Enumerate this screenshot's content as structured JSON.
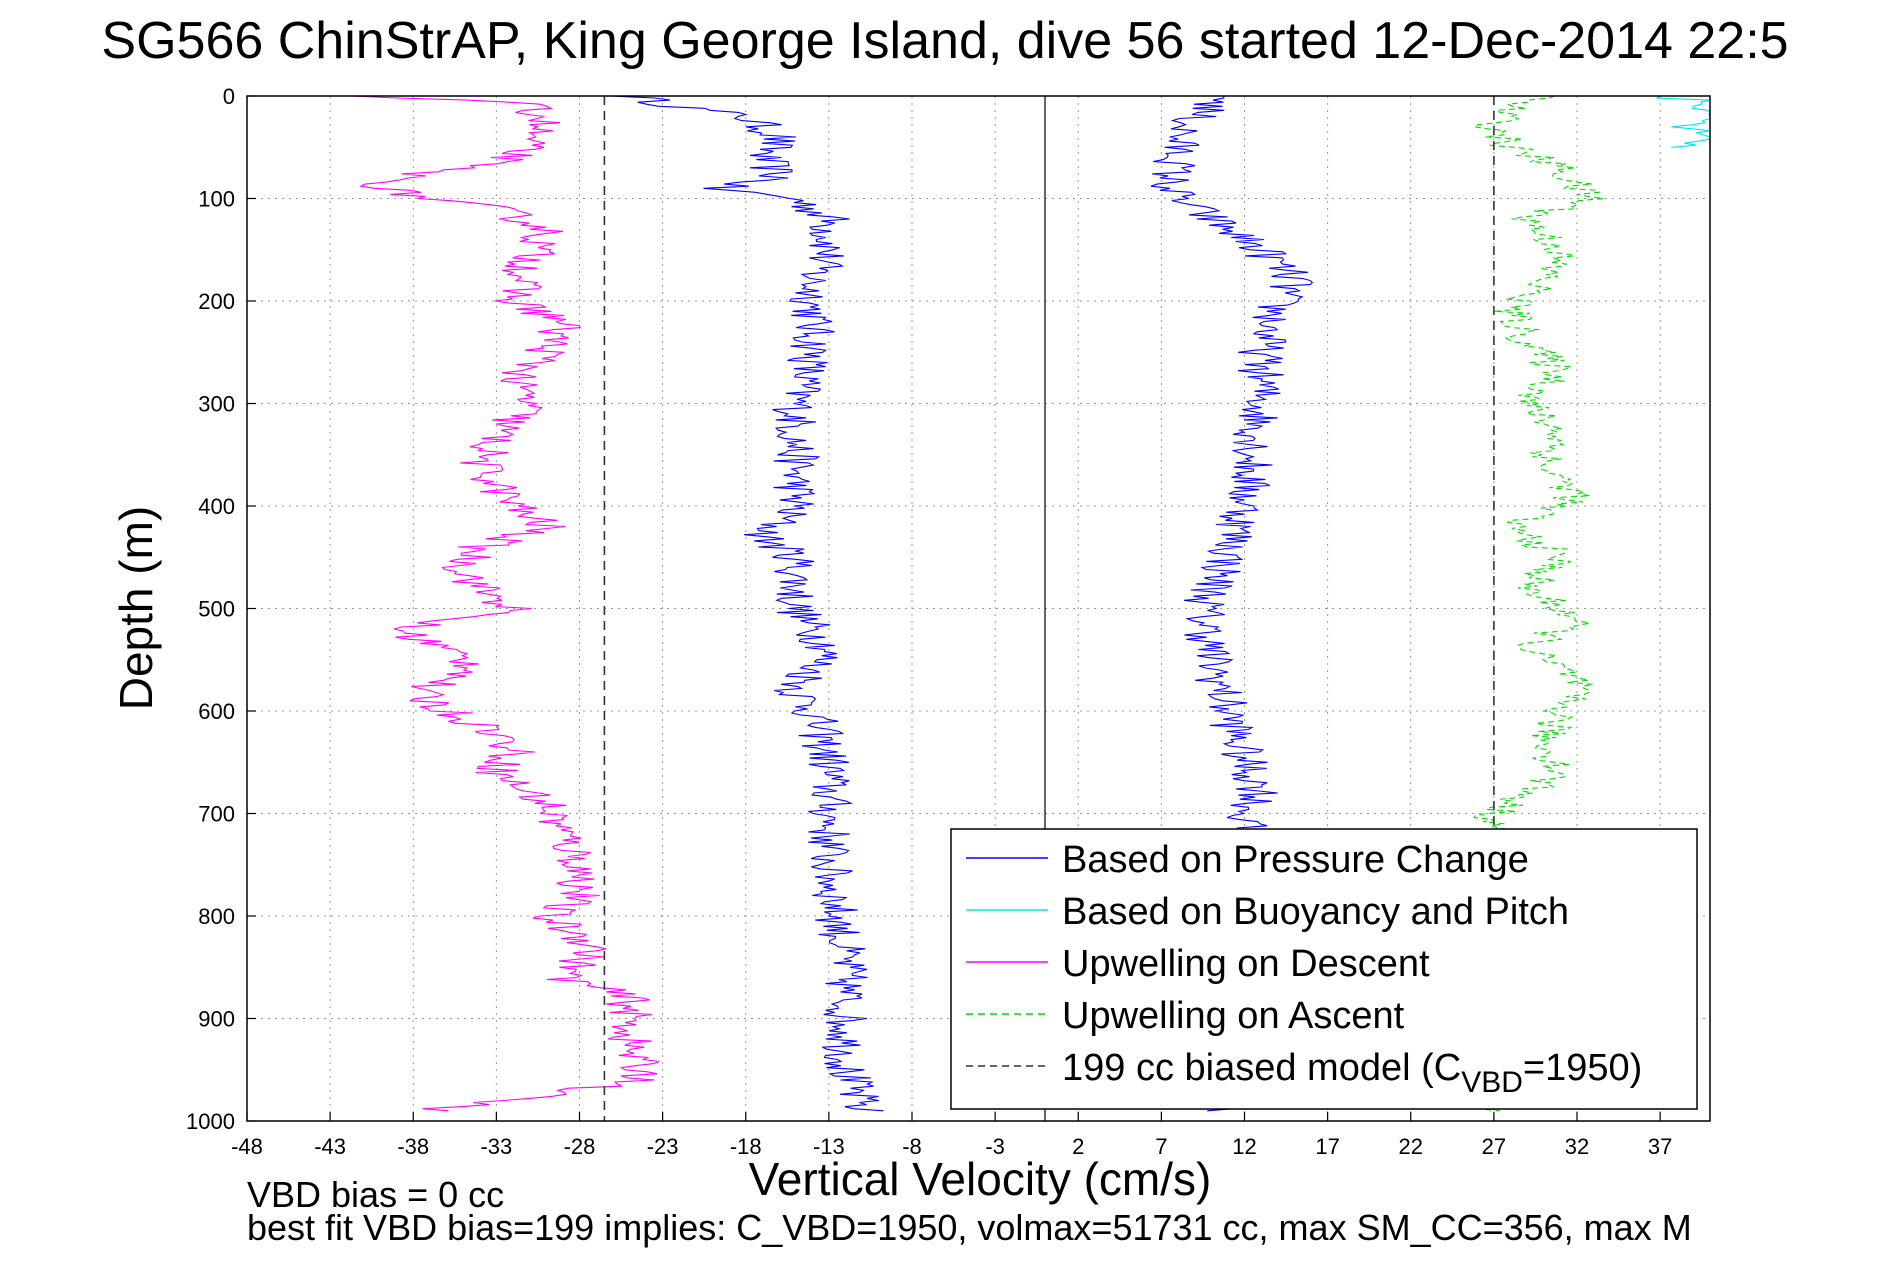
{
  "chart_data": {
    "type": "line",
    "title": "SG566 ChinStrAP, King George Island, dive 56 started 12-Dec-2014 22:5",
    "xlabel": "Vertical Velocity (cm/s)",
    "ylabel": "Depth (m)",
    "xlim": [
      -48,
      40
    ],
    "ylim": [
      0,
      1000
    ],
    "y_reversed": true,
    "x_ticks": [
      "-48",
      "-43",
      "-38",
      "-33",
      "-28",
      "-23",
      "-18",
      "-13",
      "-8",
      "-3",
      "2",
      "7",
      "12",
      "17",
      "22",
      "27",
      "32",
      "37"
    ],
    "y_ticks": [
      "0",
      "100",
      "200",
      "300",
      "400",
      "500",
      "600",
      "700",
      "800",
      "900",
      "1000"
    ],
    "grid": true,
    "legend_position": "lower-right",
    "series": [
      {
        "name": "Based on Pressure Change",
        "color": "#0000ff",
        "style": "solid",
        "depths": [
          0,
          10,
          20,
          40,
          60,
          80,
          90,
          100,
          120,
          150,
          180,
          200,
          250,
          300,
          350,
          400,
          430,
          450,
          500,
          540,
          580,
          600,
          650,
          700,
          750,
          800,
          850,
          900,
          950,
          990
        ],
        "values": [
          -25,
          -22,
          -18,
          -16,
          -17,
          -16,
          -20,
          -15,
          -13,
          -13,
          -14,
          -14,
          -14,
          -15,
          -15,
          -15,
          -17,
          -15,
          -15,
          -13,
          -15,
          -14,
          -13,
          -13,
          -13,
          -12.5,
          -12,
          -12,
          -12,
          -11
        ]
      },
      {
        "name": "Based on Pressure Change",
        "color": "#0000ff",
        "style": "solid",
        "depths": [
          0,
          10,
          20,
          40,
          60,
          80,
          90,
          100,
          120,
          150,
          180,
          200,
          250,
          300,
          350,
          400,
          450,
          500,
          550,
          600,
          650,
          680,
          700,
          750,
          800,
          850,
          900,
          950,
          990
        ],
        "values": [
          11,
          10,
          9,
          8,
          8,
          7.5,
          7.5,
          8,
          10,
          13,
          15,
          14,
          13,
          13,
          12.5,
          12,
          11,
          9.5,
          10,
          11,
          12,
          13,
          12,
          12,
          12,
          12,
          12,
          12,
          11
        ]
      },
      {
        "name": "Based on Buoyancy and Pitch",
        "color": "#00e5ee",
        "style": "solid",
        "depths": [
          0,
          5,
          10,
          20,
          30,
          40,
          50
        ],
        "values": [
          37,
          40,
          39,
          40,
          38,
          40,
          39
        ]
      },
      {
        "name": "Upwelling on Descent",
        "color": "#ff00ff",
        "style": "solid",
        "depths": [
          0,
          5,
          20,
          40,
          60,
          80,
          90,
          100,
          110,
          130,
          160,
          200,
          220,
          250,
          280,
          300,
          330,
          360,
          400,
          420,
          440,
          460,
          480,
          500,
          520,
          540,
          560,
          580,
          600,
          620,
          640,
          660,
          690,
          720,
          750,
          780,
          800,
          830,
          860,
          880,
          900,
          930,
          960,
          990
        ],
        "values": [
          -43,
          -32,
          -30,
          -31,
          -32,
          -39,
          -40,
          -37,
          -33,
          -30,
          -31,
          -32,
          -29,
          -30,
          -32,
          -31,
          -33,
          -34,
          -32,
          -30,
          -34,
          -35,
          -34,
          -32,
          -39,
          -36,
          -34,
          -38,
          -36,
          -33,
          -32,
          -33,
          -30,
          -29,
          -28,
          -28,
          -30,
          -27,
          -29,
          -25,
          -25,
          -25,
          -24,
          -37
        ]
      },
      {
        "name": "Upwelling on Ascent",
        "color": "#00dd00",
        "style": "dashed",
        "depths": [
          0,
          10,
          30,
          50,
          70,
          90,
          100,
          120,
          150,
          180,
          210,
          240,
          270,
          300,
          330,
          360,
          390,
          420,
          450,
          480,
          510,
          540,
          570,
          600,
          630,
          660,
          700,
          750,
          800,
          850,
          900,
          950,
          990
        ],
        "values": [
          30,
          28,
          27,
          28,
          31,
          32,
          33,
          29,
          31,
          30,
          28,
          29,
          31,
          29,
          31,
          30,
          32,
          28,
          31,
          29,
          32,
          29,
          32,
          31,
          30,
          31,
          27,
          27,
          27,
          27,
          27,
          27,
          27
        ]
      },
      {
        "name": "199 cc biased model (C<tspan dy=\"12\" font-size=\"32\">VBD</tspan><tspan dy=\"-12\">=1950)</tspan>",
        "color": "#333333",
        "style": "dashed",
        "depths": [
          0,
          1000
        ],
        "values": [
          -26.5,
          -26.5
        ]
      },
      {
        "name": "",
        "color": "#333333",
        "style": "dashed",
        "depths": [
          0,
          1000
        ],
        "values": [
          27,
          27
        ]
      }
    ],
    "zero_line": {
      "color": "#000000",
      "x": 0
    }
  },
  "legend": {
    "entries": [
      {
        "label": "Based on Pressure Change",
        "color": "#0000ff",
        "style": "solid"
      },
      {
        "label": "Based on Buoyancy and Pitch",
        "color": "#00e5ee",
        "style": "solid"
      },
      {
        "label": "Upwelling on Descent",
        "color": "#ff00ff",
        "style": "solid"
      },
      {
        "label": "Upwelling on Ascent",
        "color": "#00dd00",
        "style": "dashed"
      },
      {
        "label": "199 cc biased model (C",
        "sub": "VBD",
        "suffix": "=1950)",
        "color": "#333333",
        "style": "dashed"
      }
    ]
  },
  "notes": {
    "line1": "VBD bias = 0 cc",
    "line2": "best fit VBD bias=199 implies: C_VBD=1950, volmax=51731 cc, max SM_CC=356, max M"
  }
}
